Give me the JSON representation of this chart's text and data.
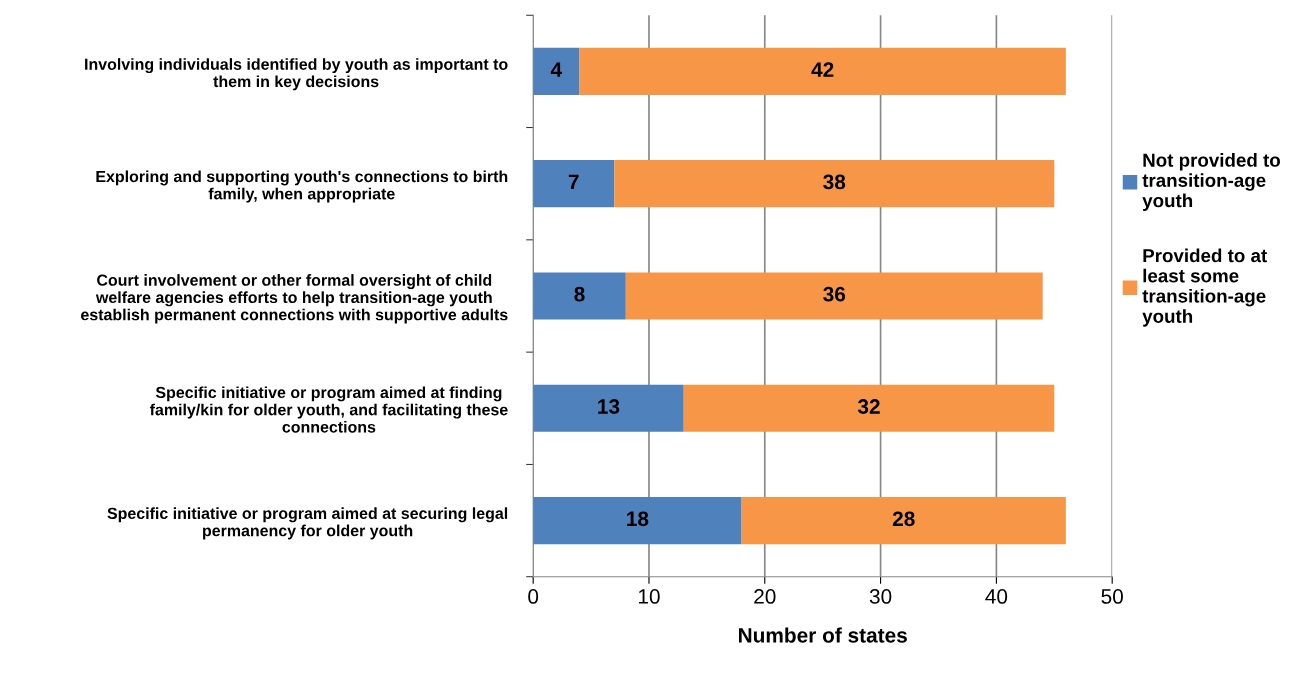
{
  "chart_data": {
    "type": "bar",
    "orientation": "horizontal",
    "stacked": true,
    "categories": [
      "Involving individuals identified by youth as important to\nthem in key decisions",
      "Exploring and supporting youth's connections to birth\nfamily, when appropriate",
      "Court involvement or other formal oversight of child\nwelfare agencies efforts to help transition-age youth\nestablish permanent connections with supportive adults",
      "Specific initiative or program aimed at finding\nfamily/kin for older youth, and facilitating these\nconnections",
      "Specific initiative or program aimed at securing legal\npermanency for older youth"
    ],
    "series": [
      {
        "name": "Not provided to\ntransition-age\nyouth",
        "color": "#4f81bd",
        "values": [
          4,
          7,
          8,
          13,
          18
        ]
      },
      {
        "name": "Provided to at\nleast some\ntransition-age\nyouth",
        "color": "#f79646",
        "values": [
          42,
          38,
          36,
          32,
          28
        ]
      }
    ],
    "xlabel": "Number of states",
    "xlim": [
      0,
      50
    ],
    "xticks": [
      0,
      10,
      20,
      30,
      40,
      50
    ],
    "grid": "x",
    "legend": "right",
    "data_labels": true
  }
}
